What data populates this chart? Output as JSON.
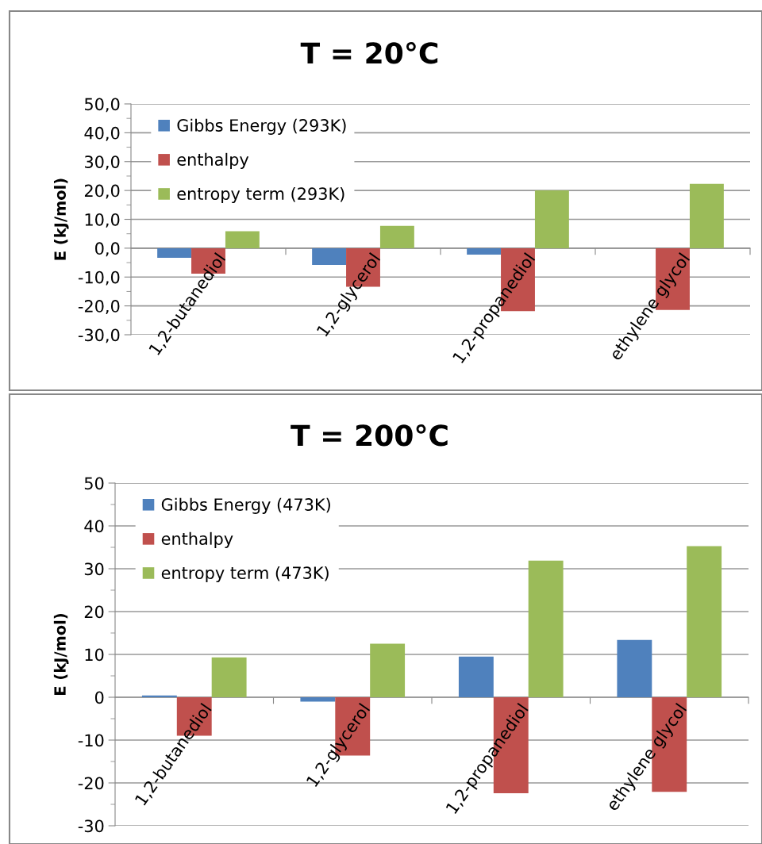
{
  "chart_data": [
    {
      "type": "bar",
      "title": "T = 20°C",
      "ylabel": "E (kJ/mol)",
      "categories": [
        "1,2-butanediol",
        "1,2-glycerol",
        "1,2-propanediol",
        "ethylene glycol"
      ],
      "series": [
        {
          "name": "Gibbs Energy (293K)",
          "color": "#4f81bd",
          "values": [
            -3.3,
            -5.8,
            -2.2,
            0
          ]
        },
        {
          "name": "enthalpy",
          "color": "#c0504d",
          "values": [
            -8.8,
            -13.4,
            -21.8,
            -21.4
          ]
        },
        {
          "name": "entropy term (293K)",
          "color": "#9bbb59",
          "values": [
            5.9,
            7.7,
            20.0,
            22.3
          ]
        }
      ],
      "ylim": [
        -30,
        50
      ],
      "yticks": [
        {
          "value": -30,
          "label": "-30,0"
        },
        {
          "value": -20,
          "label": "-20,0"
        },
        {
          "value": -10,
          "label": "-10,0"
        },
        {
          "value": 0,
          "label": "0,0"
        },
        {
          "value": 10,
          "label": "10,0"
        },
        {
          "value": 20,
          "label": "20,0"
        },
        {
          "value": 30,
          "label": "30,0"
        },
        {
          "value": 40,
          "label": "40,0"
        },
        {
          "value": 50,
          "label": "50,0"
        }
      ],
      "grid": "y",
      "legend": "top left"
    },
    {
      "type": "bar",
      "title": "T = 200°C",
      "ylabel": "E (kJ/mol)",
      "categories": [
        "1,2-butanediol",
        "1,2-glycerol",
        "1,2-propanediol",
        "ethylene glycol"
      ],
      "series": [
        {
          "name": "Gibbs Energy (473K)",
          "color": "#4f81bd",
          "values": [
            0.4,
            -1.0,
            9.5,
            13.4
          ]
        },
        {
          "name": "enthalpy",
          "color": "#c0504d",
          "values": [
            -9.0,
            -13.6,
            -22.4,
            -22.1
          ]
        },
        {
          "name": "entropy term (473K)",
          "color": "#9bbb59",
          "values": [
            9.3,
            12.5,
            31.9,
            35.3
          ]
        }
      ],
      "ylim": [
        -30,
        50
      ],
      "yticks": [
        -30,
        -20,
        -10,
        0,
        10,
        20,
        30,
        40,
        50
      ],
      "grid": "y",
      "legend": "top left"
    }
  ]
}
